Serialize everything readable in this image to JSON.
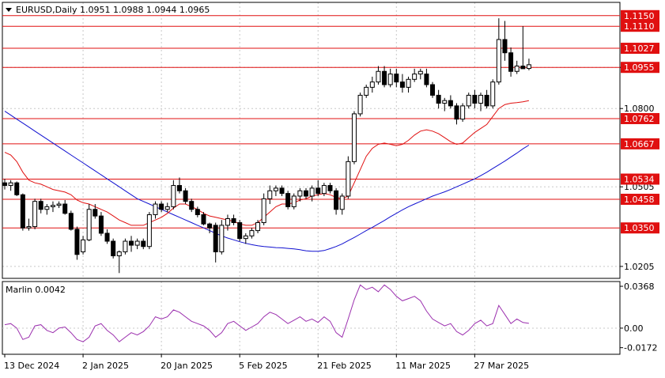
{
  "header": {
    "symbol_line": "EURUSD,Daily  1.0951 1.0988 1.0944 1.0965",
    "oscillator_label": "Marlin 0.0042"
  },
  "colors": {
    "background": "#ffffff",
    "grid": "#c8c8c8",
    "candle_outline": "#000000",
    "bull_body": "#ffffff",
    "bear_body": "#000000",
    "level_line": "#e01010",
    "level_label_bg": "#e01010",
    "level_label_text": "#ffffff",
    "ma_fast": "#e01010",
    "ma_slow": "#1010d0",
    "marlin": "#9b2fae"
  },
  "chart_data": [
    {
      "type": "candlestick",
      "symbol": "EURUSD",
      "timeframe": "Daily",
      "ohlc_last": {
        "open": 1.0951,
        "high": 1.0988,
        "low": 1.0944,
        "close": 1.0965
      },
      "price_axis_labels": [
        "1.0955",
        "1.0800",
        "1.0505",
        "1.0205"
      ],
      "horizontal_levels": [
        1.115,
        1.111,
        1.1027,
        1.0955,
        1.0762,
        1.0667,
        1.0534,
        1.0458,
        1.035
      ],
      "x_labels": [
        "13 Dec 2024",
        "2 Jan 2025",
        "20 Jan 2025",
        "5 Feb 2025",
        "21 Feb 2025",
        "11 Mar 2025",
        "27 Mar 2025"
      ],
      "x_label_candle_index": [
        0,
        13,
        26,
        39,
        52,
        65,
        78
      ],
      "ylim": [
        1.016,
        1.12
      ],
      "candles": [
        [
          1.052,
          1.0535,
          1.0495,
          1.051
        ],
        [
          1.051,
          1.053,
          1.049,
          1.052
        ],
        [
          1.052,
          1.0525,
          1.047,
          1.0475
        ],
        [
          1.0475,
          1.048,
          1.034,
          1.035
        ],
        [
          1.035,
          1.0385,
          1.034,
          1.0355
        ],
        [
          1.0355,
          1.046,
          1.0345,
          1.045
        ],
        [
          1.045,
          1.046,
          1.0405,
          1.042
        ],
        [
          1.042,
          1.044,
          1.04,
          1.043
        ],
        [
          1.043,
          1.045,
          1.041,
          1.0435
        ],
        [
          1.0435,
          1.045,
          1.0425,
          1.044
        ],
        [
          1.044,
          1.0455,
          1.04,
          1.0405
        ],
        [
          1.0405,
          1.0415,
          1.034,
          1.0345
        ],
        [
          1.0345,
          1.0355,
          1.023,
          1.025
        ],
        [
          1.026,
          1.032,
          1.025,
          1.0305
        ],
        [
          1.0305,
          1.044,
          1.03,
          1.042
        ],
        [
          1.042,
          1.044,
          1.0385,
          1.0395
        ],
        [
          1.0395,
          1.041,
          1.032,
          1.033
        ],
        [
          1.033,
          1.0345,
          1.029,
          1.03
        ],
        [
          1.03,
          1.031,
          1.0235,
          1.0245
        ],
        [
          1.0245,
          1.0265,
          1.018,
          1.026
        ],
        [
          1.026,
          1.031,
          1.025,
          1.03
        ],
        [
          1.03,
          1.032,
          1.026,
          1.0285
        ],
        [
          1.0285,
          1.031,
          1.027,
          1.03
        ],
        [
          1.03,
          1.031,
          1.027,
          1.028
        ],
        [
          1.028,
          1.041,
          1.027,
          1.04
        ],
        [
          1.04,
          1.045,
          1.0385,
          1.044
        ],
        [
          1.044,
          1.045,
          1.041,
          1.042
        ],
        [
          1.042,
          1.0445,
          1.041,
          1.043
        ],
        [
          1.043,
          1.053,
          1.042,
          1.051
        ],
        [
          1.051,
          1.054,
          1.048,
          1.049
        ],
        [
          1.049,
          1.05,
          1.044,
          1.045
        ],
        [
          1.045,
          1.046,
          1.041,
          1.042
        ],
        [
          1.042,
          1.043,
          1.039,
          1.04
        ],
        [
          1.04,
          1.041,
          1.036,
          1.0365
        ],
        [
          1.0365,
          1.037,
          1.033,
          1.035
        ],
        [
          1.036,
          1.037,
          1.022,
          1.026
        ],
        [
          1.026,
          1.038,
          1.025,
          1.036
        ],
        [
          1.036,
          1.04,
          1.034,
          1.0385
        ],
        [
          1.0385,
          1.04,
          1.036,
          1.037
        ],
        [
          1.037,
          1.038,
          1.03,
          1.031
        ],
        [
          1.031,
          1.033,
          1.029,
          1.032
        ],
        [
          1.032,
          1.035,
          1.031,
          1.034
        ],
        [
          1.034,
          1.038,
          1.033,
          1.037
        ],
        [
          1.037,
          1.048,
          1.036,
          1.046
        ],
        [
          1.046,
          1.051,
          1.044,
          1.049
        ],
        [
          1.049,
          1.051,
          1.047,
          1.05
        ],
        [
          1.05,
          1.051,
          1.047,
          1.048
        ],
        [
          1.048,
          1.049,
          1.042,
          1.043
        ],
        [
          1.043,
          1.048,
          1.042,
          1.047
        ],
        [
          1.047,
          1.05,
          1.045,
          1.049
        ],
        [
          1.049,
          1.05,
          1.046,
          1.047
        ],
        [
          1.047,
          1.051,
          1.045,
          1.05
        ],
        [
          1.05,
          1.053,
          1.047,
          1.048
        ],
        [
          1.048,
          1.052,
          1.047,
          1.051
        ],
        [
          1.051,
          1.052,
          1.048,
          1.049
        ],
        [
          1.049,
          1.05,
          1.04,
          1.042
        ],
        [
          1.042,
          1.048,
          1.04,
          1.047
        ],
        [
          1.047,
          1.062,
          1.046,
          1.06
        ],
        [
          1.06,
          1.079,
          1.059,
          1.078
        ],
        [
          1.078,
          1.086,
          1.077,
          1.085
        ],
        [
          1.085,
          1.089,
          1.084,
          1.088
        ],
        [
          1.088,
          1.092,
          1.086,
          1.09
        ],
        [
          1.09,
          1.096,
          1.089,
          1.094
        ],
        [
          1.094,
          1.096,
          1.088,
          1.089
        ],
        [
          1.089,
          1.095,
          1.088,
          1.093
        ],
        [
          1.093,
          1.095,
          1.088,
          1.09
        ],
        [
          1.09,
          1.093,
          1.086,
          1.088
        ],
        [
          1.088,
          1.092,
          1.086,
          1.091
        ],
        [
          1.091,
          1.095,
          1.09,
          1.093
        ],
        [
          1.093,
          1.095,
          1.091,
          1.094
        ],
        [
          1.093,
          1.095,
          1.088,
          1.089
        ],
        [
          1.089,
          1.09,
          1.084,
          1.085
        ],
        [
          1.085,
          1.087,
          1.08,
          1.082
        ],
        [
          1.082,
          1.084,
          1.079,
          1.083
        ],
        [
          1.083,
          1.085,
          1.08,
          1.081
        ],
        [
          1.081,
          1.082,
          1.074,
          1.076
        ],
        [
          1.076,
          1.082,
          1.075,
          1.081
        ],
        [
          1.081,
          1.086,
          1.08,
          1.085
        ],
        [
          1.085,
          1.087,
          1.08,
          1.082
        ],
        [
          1.082,
          1.086,
          1.079,
          1.085
        ],
        [
          1.085,
          1.087,
          1.08,
          1.081
        ],
        [
          1.081,
          1.091,
          1.08,
          1.09
        ],
        [
          1.09,
          1.114,
          1.089,
          1.106
        ],
        [
          1.106,
          1.113,
          1.098,
          1.101
        ],
        [
          1.101,
          1.103,
          1.092,
          1.094
        ],
        [
          1.094,
          1.098,
          1.093,
          1.096
        ],
        [
          1.096,
          1.111,
          1.095,
          1.095
        ],
        [
          1.0951,
          1.0988,
          1.0944,
          1.0965
        ]
      ],
      "ma_fast": [
        1.0635,
        1.0625,
        1.06,
        1.056,
        1.053,
        1.052,
        1.0515,
        1.0505,
        1.0495,
        1.049,
        1.0485,
        1.0475,
        1.0455,
        1.0445,
        1.044,
        1.043,
        1.042,
        1.041,
        1.0395,
        1.038,
        1.037,
        1.036,
        1.036,
        1.036,
        1.037,
        1.038,
        1.039,
        1.0405,
        1.0425,
        1.044,
        1.044,
        1.043,
        1.042,
        1.0405,
        1.0395,
        1.039,
        1.0385,
        1.038,
        1.0375,
        1.0365,
        1.036,
        1.036,
        1.037,
        1.039,
        1.041,
        1.043,
        1.044,
        1.044,
        1.0445,
        1.0455,
        1.046,
        1.047,
        1.0475,
        1.048,
        1.0475,
        1.0465,
        1.046,
        1.047,
        1.052,
        1.057,
        1.062,
        1.065,
        1.0665,
        1.067,
        1.0665,
        1.066,
        1.0665,
        1.068,
        1.07,
        1.0715,
        1.072,
        1.0715,
        1.0705,
        1.069,
        1.0675,
        1.0665,
        1.067,
        1.069,
        1.071,
        1.0725,
        1.074,
        1.077,
        1.08,
        1.0815,
        1.082,
        1.0822,
        1.0825,
        1.083
      ],
      "ma_slow": [
        1.079,
        1.0775,
        1.076,
        1.0745,
        1.073,
        1.0715,
        1.07,
        1.0685,
        1.067,
        1.0655,
        1.064,
        1.0625,
        1.061,
        1.0595,
        1.058,
        1.0565,
        1.055,
        1.0535,
        1.052,
        1.0505,
        1.049,
        1.0475,
        1.046,
        1.045,
        1.044,
        1.043,
        1.042,
        1.041,
        1.04,
        1.039,
        1.038,
        1.037,
        1.036,
        1.035,
        1.034,
        1.033,
        1.032,
        1.0312,
        1.0305,
        1.0298,
        1.0292,
        1.0287,
        1.0283,
        1.028,
        1.0278,
        1.0276,
        1.0275,
        1.0273,
        1.0271,
        1.0268,
        1.0264,
        1.0262,
        1.0262,
        1.0265,
        1.0272,
        1.028,
        1.029,
        1.0302,
        1.0314,
        1.0327,
        1.034,
        1.0352,
        1.0365,
        1.0378,
        1.0392,
        1.0405,
        1.0418,
        1.043,
        1.044,
        1.045,
        1.046,
        1.047,
        1.0478,
        1.0486,
        1.0495,
        1.0505,
        1.0515,
        1.0525,
        1.0535,
        1.0547,
        1.056,
        1.0574,
        1.0588,
        1.0602,
        1.0617,
        1.0632,
        1.0648,
        1.0662
      ]
    },
    {
      "type": "line",
      "indicator": "Marlin",
      "current_value": 0.0042,
      "axis_labels": [
        "0.0368",
        "0.00",
        "-0.0172"
      ],
      "zero_line": 0,
      "ylim": [
        -0.023,
        0.041
      ],
      "values": [
        0.003,
        0.004,
        0.0,
        -0.01,
        -0.008,
        0.002,
        0.003,
        -0.002,
        -0.004,
        0.0,
        0.001,
        -0.004,
        -0.01,
        -0.012,
        -0.008,
        0.002,
        0.004,
        -0.002,
        -0.006,
        -0.012,
        -0.008,
        -0.004,
        -0.006,
        -0.003,
        0.002,
        0.01,
        0.008,
        0.01,
        0.016,
        0.014,
        0.01,
        0.006,
        0.004,
        0.002,
        -0.002,
        -0.008,
        -0.004,
        0.004,
        0.006,
        0.002,
        -0.002,
        0.001,
        0.004,
        0.01,
        0.014,
        0.012,
        0.008,
        0.004,
        0.007,
        0.01,
        0.006,
        0.008,
        0.005,
        0.01,
        0.006,
        -0.004,
        -0.008,
        0.008,
        0.025,
        0.038,
        0.034,
        0.036,
        0.032,
        0.038,
        0.034,
        0.028,
        0.024,
        0.026,
        0.028,
        0.024,
        0.015,
        0.008,
        0.005,
        0.002,
        0.004,
        -0.003,
        -0.006,
        -0.002,
        0.004,
        0.007,
        0.002,
        0.004,
        0.02,
        0.012,
        0.004,
        0.008,
        0.005,
        0.0042
      ]
    }
  ]
}
